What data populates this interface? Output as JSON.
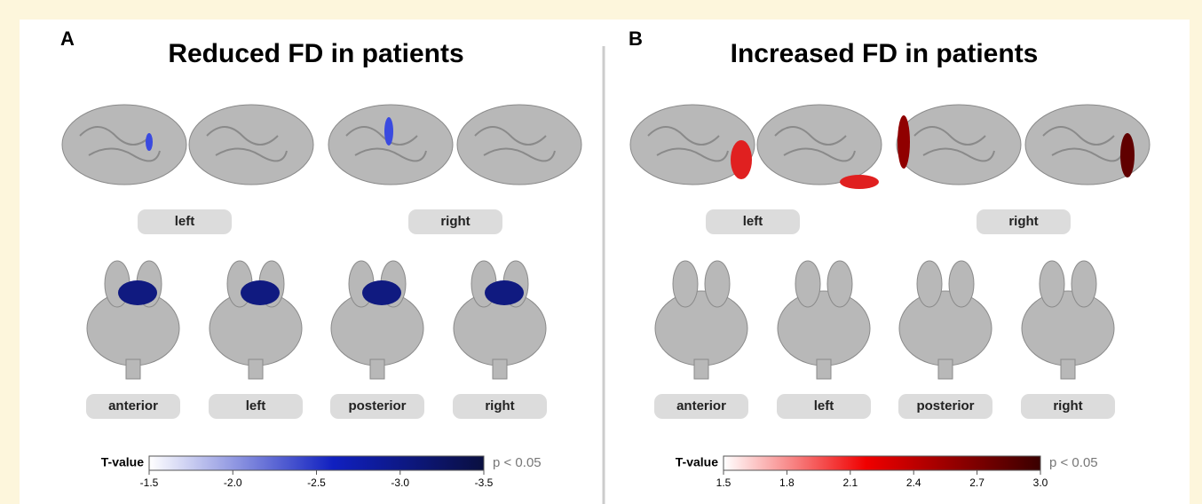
{
  "panels": [
    {
      "letter": "A",
      "title": "Reduced FD in patients",
      "cortex_labels": [
        "left",
        "right"
      ],
      "subcortex_labels": [
        "anterior",
        "left",
        "posterior",
        "right"
      ],
      "colorbar": {
        "label": "T-value",
        "ticks": [
          "-1.5",
          "-2.0",
          "-2.5",
          "-3.0",
          "-3.5"
        ],
        "threshold": "p < 0.05"
      }
    },
    {
      "letter": "B",
      "title": "Increased FD in patients",
      "cortex_labels": [
        "left",
        "right"
      ],
      "subcortex_labels": [
        "anterior",
        "left",
        "posterior",
        "right"
      ],
      "colorbar": {
        "label": "T-value",
        "ticks": [
          "1.5",
          "1.8",
          "2.1",
          "2.4",
          "2.7",
          "3.0"
        ],
        "threshold": "p < 0.05"
      }
    }
  ]
}
